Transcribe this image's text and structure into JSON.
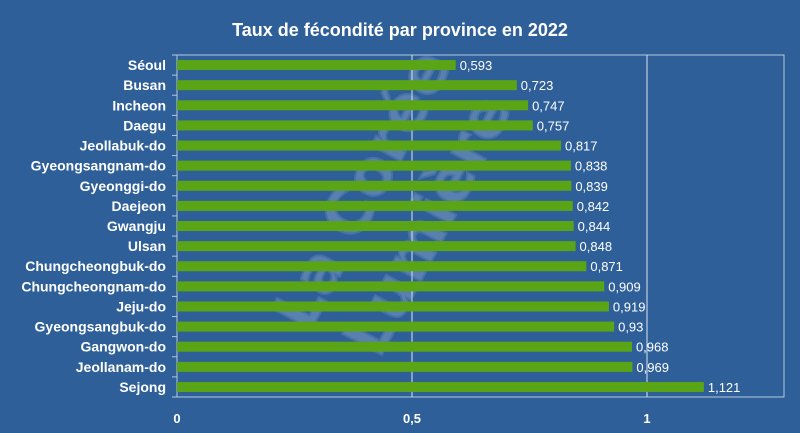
{
  "chart_data": {
    "type": "bar",
    "orientation": "horizontal",
    "title": "Taux de fécondité par province en 2022",
    "xlabel": "",
    "ylabel": "",
    "xlim": [
      0,
      1.3
    ],
    "x_ticks": [
      {
        "value": 0,
        "label": "0"
      },
      {
        "value": 0.5,
        "label": "0,5"
      },
      {
        "value": 1,
        "label": "1"
      }
    ],
    "grid": "vertical",
    "legend": "none",
    "categories": [
      "Séoul",
      "Busan",
      "Incheon",
      "Daegu",
      "Jeollabuk-do",
      "Gyeongsangnam-do",
      "Gyeonggi-do",
      "Daejeon",
      "Gwangju",
      "Ulsan",
      "Chungcheongbuk-do",
      "Chungcheongnam-do",
      "Jeju-do",
      "Gyeongsangbuk-do",
      "Gangwon-do",
      "Jeollanam-do",
      "Sejong"
    ],
    "values": [
      0.593,
      0.723,
      0.747,
      0.757,
      0.817,
      0.838,
      0.839,
      0.842,
      0.844,
      0.848,
      0.871,
      0.909,
      0.919,
      0.93,
      0.968,
      0.969,
      1.121
    ],
    "value_labels": [
      "0,593",
      "0,723",
      "0,747",
      "0,757",
      "0,817",
      "0,838",
      "0,839",
      "0,842",
      "0,844",
      "0,848",
      "0,871",
      "0,909",
      "0,919",
      "0,93",
      "0,968",
      "0,969",
      "1,121"
    ]
  },
  "watermark": {
    "line1": "La Corée",
    "line2": "Lumière"
  },
  "colors": {
    "background": "#2e5f99",
    "plot_area": "#2e5f99",
    "plot_border": "#b7c7dc",
    "bar": "#5aa516",
    "gridline": "#dce4ee",
    "text": "#ffffff"
  }
}
